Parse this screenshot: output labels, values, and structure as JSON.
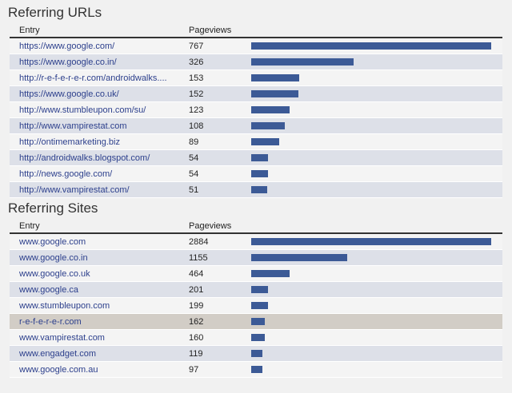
{
  "urls": {
    "title": "Referring URLs",
    "header": {
      "entry": "Entry",
      "pageviews": "Pageviews"
    },
    "rows": [
      {
        "entry": "https://www.google.com/",
        "pageviews": "767"
      },
      {
        "entry": "https://www.google.co.in/",
        "pageviews": "326"
      },
      {
        "entry": "http://r-e-f-e-r-e-r.com/androidwalks....",
        "pageviews": "153"
      },
      {
        "entry": "https://www.google.co.uk/",
        "pageviews": "152"
      },
      {
        "entry": "http://www.stumbleupon.com/su/",
        "pageviews": "123"
      },
      {
        "entry": "http://www.vampirestat.com",
        "pageviews": "108"
      },
      {
        "entry": "http://ontimemarketing.biz",
        "pageviews": "89"
      },
      {
        "entry": "http://androidwalks.blogspot.com/",
        "pageviews": "54"
      },
      {
        "entry": "http://news.google.com/",
        "pageviews": "54"
      },
      {
        "entry": "http://www.vampirestat.com/",
        "pageviews": "51"
      }
    ]
  },
  "sites": {
    "title": "Referring Sites",
    "header": {
      "entry": "Entry",
      "pageviews": "Pageviews"
    },
    "rows": [
      {
        "entry": "www.google.com",
        "pageviews": "2884"
      },
      {
        "entry": "www.google.co.in",
        "pageviews": "1155"
      },
      {
        "entry": "www.google.co.uk",
        "pageviews": "464"
      },
      {
        "entry": "www.google.ca",
        "pageviews": "201"
      },
      {
        "entry": "www.stumbleupon.com",
        "pageviews": "199"
      },
      {
        "entry": "r-e-f-e-r-e-r.com",
        "pageviews": "162"
      },
      {
        "entry": "www.vampirestat.com",
        "pageviews": "160"
      },
      {
        "entry": "www.engadget.com",
        "pageviews": "119"
      },
      {
        "entry": "www.google.com.au",
        "pageviews": "97"
      }
    ]
  },
  "colors": {
    "bar": "#3c5a96",
    "link": "#2c3f8c",
    "row_alt": "#dde0e8",
    "row_highlight": "#d2cdc6"
  }
}
